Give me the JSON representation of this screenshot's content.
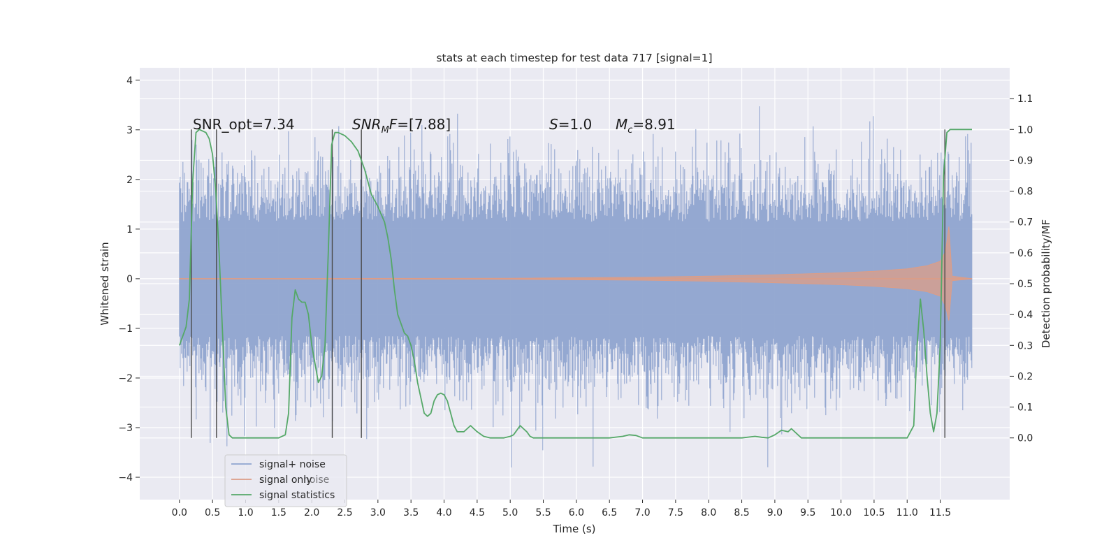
{
  "chart_data": {
    "type": "line",
    "title": "stats at each timestep for test data 717 [signal=1]",
    "xlabel": "Time (s)",
    "ylabel": "Whitened strain",
    "ylabel_right": "Detection probability/MF",
    "xlim": [
      -0.6,
      12.55
    ],
    "ylim": [
      -4.45,
      4.25
    ],
    "ylim_right": [
      -0.2,
      1.2
    ],
    "x_ticks": [
      "0.0",
      "0.5",
      "1.0",
      "1.5",
      "2.0",
      "2.5",
      "3.0",
      "3.5",
      "4.0",
      "4.5",
      "5.0",
      "5.5",
      "6.0",
      "6.5",
      "7.0",
      "7.5",
      "8.0",
      "8.5",
      "9.0",
      "9.5",
      "10.0",
      "10.5",
      "11.0",
      "11.5"
    ],
    "y_ticks": [
      "−4",
      "−3",
      "−2",
      "−1",
      "0",
      "1",
      "2",
      "3",
      "4"
    ],
    "y_ticks_right": [
      "0.0",
      "0.1",
      "0.2",
      "0.3",
      "0.4",
      "0.5",
      "0.6",
      "0.7",
      "0.8",
      "0.9",
      "1.0",
      "1.1"
    ],
    "grid": true,
    "legend_position": "lower-left",
    "annotations": {
      "snr_opt": "SNR_opt=7.34",
      "snr_mf_base": "SNR",
      "snr_mf_sub": "M",
      "snr_mf_rest": "F=[7.88]",
      "s_italic": "S",
      "s_rest": "=1.0",
      "mc_italic": "M",
      "mc_sub": "c",
      "mc_rest": "=8.91"
    },
    "legend_ghost_text": "noise",
    "vertical_markers_x": [
      0.18,
      0.56,
      2.31,
      2.75,
      11.57
    ],
    "vertical_markers_range_right": [
      0.0,
      1.0
    ],
    "series": [
      {
        "name": "signal+ noise",
        "color": "#8fa4cf",
        "description": "whitened strain, noise envelope",
        "x_range": [
          0.0,
          11.98
        ],
        "typical_abs_amplitude": 1.7,
        "peak_abs_amplitude": 3.85
      },
      {
        "name": "signal only",
        "color": "#dd9d86",
        "description": "chirp template",
        "envelope_x": [
          0.0,
          5.0,
          7.0,
          8.0,
          9.0,
          10.0,
          10.5,
          11.0,
          11.3,
          11.5,
          11.58,
          11.63,
          11.68,
          11.98
        ],
        "envelope_y": [
          0.0,
          0.01,
          0.03,
          0.05,
          0.08,
          0.12,
          0.15,
          0.2,
          0.26,
          0.35,
          0.55,
          1.05,
          0.05,
          0.0
        ]
      },
      {
        "name": "signal statistics",
        "color": "#55a868",
        "axis": "right",
        "x": [
          0.0,
          0.1,
          0.15,
          0.2,
          0.25,
          0.3,
          0.4,
          0.45,
          0.5,
          0.55,
          0.6,
          0.65,
          0.7,
          0.75,
          0.8,
          0.9,
          1.0,
          1.2,
          1.4,
          1.5,
          1.6,
          1.65,
          1.7,
          1.75,
          1.8,
          1.85,
          1.9,
          1.95,
          2.0,
          2.1,
          2.15,
          2.2,
          2.25,
          2.3,
          2.35,
          2.4,
          2.5,
          2.6,
          2.7,
          2.8,
          2.9,
          3.0,
          3.1,
          3.15,
          3.2,
          3.25,
          3.3,
          3.4,
          3.45,
          3.5,
          3.55,
          3.6,
          3.7,
          3.75,
          3.8,
          3.85,
          3.9,
          3.95,
          4.0,
          4.05,
          4.1,
          4.15,
          4.2,
          4.3,
          4.4,
          4.45,
          4.5,
          4.6,
          4.7,
          4.8,
          4.9,
          5.0,
          5.05,
          5.1,
          5.15,
          5.2,
          5.25,
          5.3,
          5.35,
          5.4,
          5.5,
          6.0,
          6.5,
          6.7,
          6.8,
          6.9,
          7.0,
          7.5,
          8.0,
          8.5,
          8.7,
          8.8,
          8.9,
          9.0,
          9.1,
          9.2,
          9.25,
          9.3,
          9.4,
          9.5,
          10.0,
          10.5,
          11.0,
          11.1,
          11.15,
          11.2,
          11.25,
          11.3,
          11.35,
          11.4,
          11.45,
          11.5,
          11.55,
          11.6,
          11.65,
          11.7,
          11.98
        ],
        "y": [
          0.3,
          0.36,
          0.45,
          0.83,
          0.99,
          1.0,
          0.99,
          0.97,
          0.92,
          0.8,
          0.6,
          0.35,
          0.1,
          0.01,
          0.0,
          0.0,
          0.0,
          0.0,
          0.0,
          0.0,
          0.01,
          0.08,
          0.39,
          0.48,
          0.45,
          0.44,
          0.44,
          0.4,
          0.3,
          0.18,
          0.2,
          0.3,
          0.6,
          0.95,
          0.99,
          0.99,
          0.98,
          0.96,
          0.93,
          0.87,
          0.79,
          0.75,
          0.7,
          0.65,
          0.58,
          0.48,
          0.4,
          0.34,
          0.33,
          0.3,
          0.25,
          0.18,
          0.08,
          0.07,
          0.08,
          0.12,
          0.14,
          0.145,
          0.14,
          0.12,
          0.08,
          0.04,
          0.02,
          0.02,
          0.04,
          0.03,
          0.02,
          0.005,
          0.0,
          0.0,
          0.0,
          0.005,
          0.01,
          0.025,
          0.04,
          0.03,
          0.02,
          0.005,
          0.0,
          0.0,
          0.0,
          0.0,
          0.0,
          0.005,
          0.01,
          0.008,
          0.0,
          0.0,
          0.0,
          0.0,
          0.005,
          0.002,
          0.0,
          0.01,
          0.025,
          0.02,
          0.03,
          0.02,
          0.0,
          0.0,
          0.0,
          0.0,
          0.0,
          0.04,
          0.3,
          0.45,
          0.35,
          0.2,
          0.08,
          0.02,
          0.08,
          0.3,
          0.85,
          0.99,
          1.0,
          1.0,
          1.0
        ]
      }
    ],
    "legend": [
      {
        "label": "signal+ noise",
        "color": "#8fa4cf"
      },
      {
        "label": "signal only",
        "color": "#dd9d86"
      },
      {
        "label": "signal statistics",
        "color": "#55a868"
      }
    ]
  }
}
